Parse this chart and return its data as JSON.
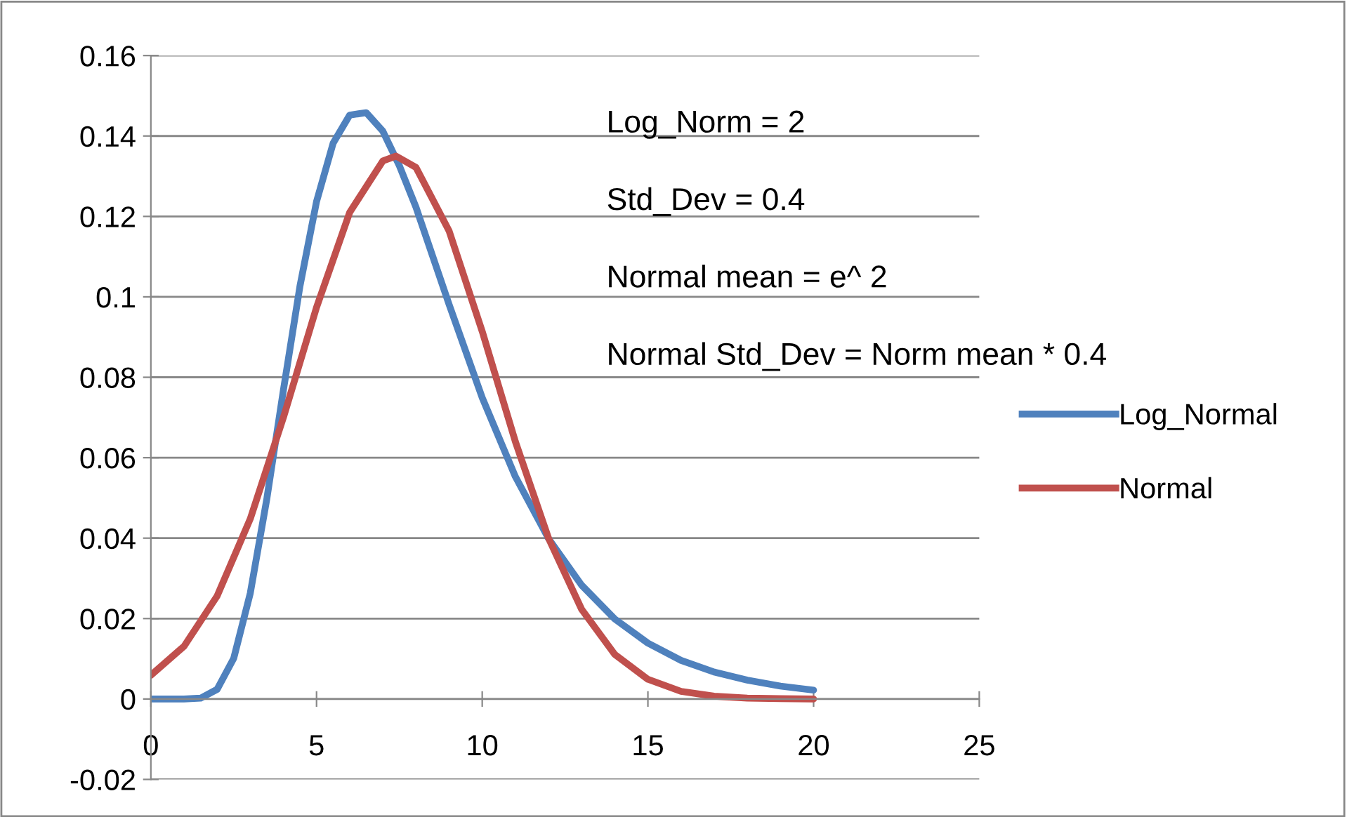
{
  "chart_data": {
    "type": "line",
    "x": [
      0,
      0.5,
      1,
      1.5,
      2,
      2.5,
      3,
      3.5,
      4,
      4.5,
      5,
      5.5,
      6,
      6.5,
      7,
      7.5,
      8,
      9,
      10,
      11,
      12,
      13,
      14,
      15,
      16,
      17,
      18,
      19,
      20
    ],
    "series": [
      {
        "name": "Log_Normal",
        "color": "#4f81bd",
        "values": [
          0,
          0,
          0,
          0.0002,
          0.0024,
          0.0101,
          0.0263,
          0.0498,
          0.0768,
          0.1027,
          0.1237,
          0.1382,
          0.1452,
          0.1458,
          0.1412,
          0.1326,
          0.1223,
          0.0981,
          0.0749,
          0.0553,
          0.0399,
          0.0283,
          0.0199,
          0.0139,
          0.0096,
          0.0067,
          0.0047,
          0.0032,
          0.0022
        ]
      },
      {
        "name": "Normal",
        "color": "#c0504d",
        "x": [
          0,
          1,
          2,
          3,
          4,
          5,
          6,
          7,
          7.4,
          8,
          9,
          10,
          11,
          12,
          13,
          14,
          15,
          16,
          17,
          18,
          19,
          20
        ],
        "values": [
          0.0059,
          0.0131,
          0.0256,
          0.0448,
          0.07,
          0.0974,
          0.121,
          0.1338,
          0.135,
          0.1322,
          0.1164,
          0.0914,
          0.064,
          0.04,
          0.0223,
          0.0111,
          0.0049,
          0.0019,
          0.0007,
          0.0002,
          0.0001,
          0
        ]
      }
    ],
    "xlim": [
      0,
      25
    ],
    "xticks": [
      0,
      5,
      10,
      15,
      20,
      25
    ],
    "ylim": [
      -0.02,
      0.16
    ],
    "yticks": [
      -0.02,
      0,
      0.02,
      0.04,
      0.06,
      0.08,
      0.1,
      0.12,
      0.14,
      0.16
    ],
    "grid": "y",
    "legend": "right",
    "marker": "none",
    "line_style": "solid",
    "annotations": [
      "Log_Norm = 2",
      "Std_Dev = 0.4",
      "Normal mean = e^ 2",
      "Normal Std_Dev = Norm mean * 0.4"
    ]
  }
}
